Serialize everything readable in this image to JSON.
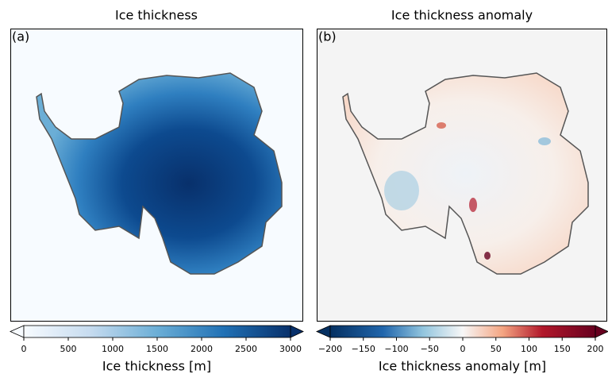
{
  "panels": [
    {
      "title": "Ice thickness",
      "label": "(a)",
      "colorbar": {
        "label": "Ice thickness [m]",
        "lim": [
          0,
          3000
        ],
        "ticks": [
          0,
          500,
          1000,
          1500,
          2000,
          2500,
          3000
        ]
      }
    },
    {
      "title": "Ice thickness anomaly",
      "label": "(b)",
      "colorbar": {
        "label": "Ice thickness anomaly [m]",
        "lim": [
          -200,
          200
        ],
        "ticks": [
          {
            "value": -200,
            "label": "−200"
          },
          {
            "value": -150,
            "label": "−150"
          },
          {
            "value": -100,
            "label": "−100"
          },
          {
            "value": -50,
            "label": "−50"
          },
          0,
          50,
          100,
          150,
          200
        ]
      }
    }
  ]
}
